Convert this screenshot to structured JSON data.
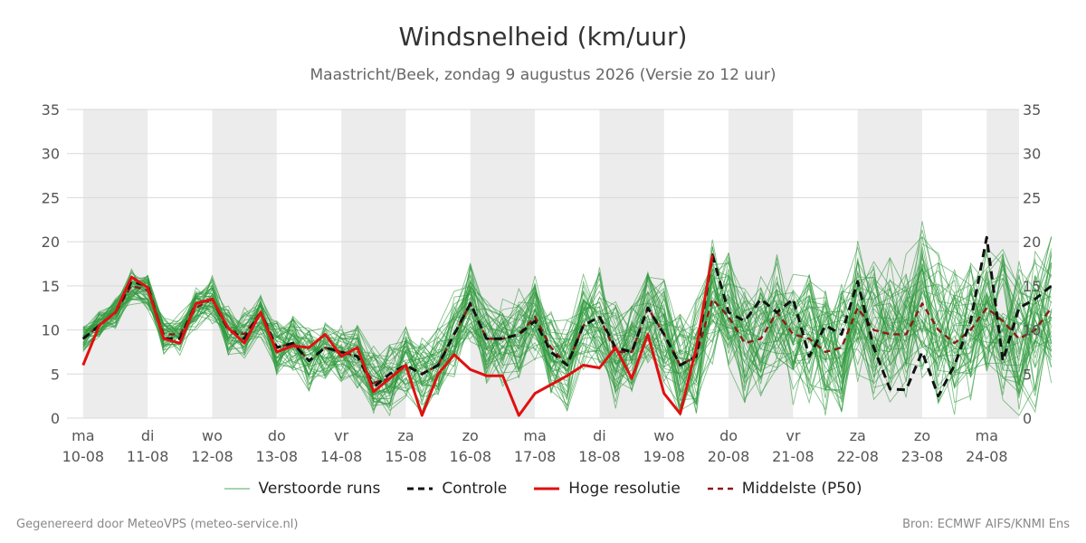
{
  "header": {
    "title": "Windsnelheid (km/uur)",
    "subtitle": "Maastricht/Beek, zondag  9 augustus 2026 (Versie zo 12 uur)"
  },
  "legend": {
    "ensemble": "Verstoorde runs",
    "control": "Controle",
    "hires": "Hoge resolutie",
    "median": "Middelste (P50)"
  },
  "footer": {
    "left": "Gegenereerd door MeteoVPS (meteo-service.nl)",
    "right": "Bron: ECMWF AIFS/KNMI Ens"
  },
  "colors": {
    "ensemble": "#2f9a3c",
    "control": "#111111",
    "hires": "#e01010",
    "median": "#8b1a1a",
    "shade": "#ececec",
    "grid": "#d9d9d9"
  },
  "chart_data": {
    "type": "line",
    "ylim": [
      0,
      35
    ],
    "yticks": [
      0,
      5,
      10,
      15,
      20,
      25,
      30,
      35
    ],
    "xlim_days": [
      -0.25,
      14.5
    ],
    "x_ticks": [
      {
        "day": "ma",
        "date": "10-08"
      },
      {
        "day": "di",
        "date": "11-08"
      },
      {
        "day": "wo",
        "date": "12-08"
      },
      {
        "day": "do",
        "date": "13-08"
      },
      {
        "day": "vr",
        "date": "14-08"
      },
      {
        "day": "za",
        "date": "15-08"
      },
      {
        "day": "zo",
        "date": "16-08"
      },
      {
        "day": "ma",
        "date": "17-08"
      },
      {
        "day": "di",
        "date": "18-08"
      },
      {
        "day": "wo",
        "date": "19-08"
      },
      {
        "day": "do",
        "date": "20-08"
      },
      {
        "day": "vr",
        "date": "21-08"
      },
      {
        "day": "za",
        "date": "22-08"
      },
      {
        "day": "zo",
        "date": "23-08"
      },
      {
        "day": "ma",
        "date": "24-08"
      }
    ],
    "shaded_days": [
      "10-08",
      "12-08",
      "14-08",
      "16-08",
      "18-08",
      "20-08",
      "22-08",
      "24-08"
    ],
    "grid": true,
    "legend_position": "bottom",
    "control": {
      "x_step_days": 0.25,
      "values": [
        9,
        10.5,
        12,
        15.5,
        15,
        9,
        9,
        13,
        13.5,
        10,
        9,
        12,
        8,
        8.5,
        6.5,
        8,
        7.5,
        7,
        3.5,
        5,
        6,
        5,
        6,
        9.5,
        13,
        9,
        9,
        9.5,
        11,
        7.5,
        6,
        10.5,
        11.5,
        8,
        7.5,
        12.5,
        9.5,
        6,
        7,
        18.5,
        12,
        11,
        13.5,
        12,
        13.5,
        7,
        10.5,
        9.5,
        15.5,
        8,
        3.3,
        3.2,
        7.5,
        2.5,
        6,
        11,
        20.5,
        6.5,
        12.5,
        13.5,
        15
      ]
    },
    "hires": {
      "x_step_days": 0.25,
      "values": [
        6,
        10.5,
        12,
        16,
        14.8,
        9,
        8.5,
        13,
        13.5,
        10.2,
        8.5,
        12,
        7.5,
        8.2,
        8,
        9.5,
        7,
        8,
        3,
        4.5,
        6,
        0.3,
        5,
        7.2,
        5.5,
        4.8,
        4.8,
        0.3,
        2.8,
        3.8,
        4.8,
        6,
        5.7,
        8,
        4.5,
        9.5,
        2.8,
        0.5,
        8,
        18.5
      ]
    },
    "median": {
      "x_step_days": 0.25,
      "values": [
        9,
        10.5,
        12,
        15,
        14.5,
        9.5,
        9.5,
        12.5,
        13.5,
        10,
        9.5,
        12,
        8,
        8.5,
        6.5,
        8,
        7.5,
        7,
        4,
        4.5,
        6,
        5,
        6,
        9.5,
        13,
        9,
        9,
        9.5,
        11.5,
        8,
        6,
        10.5,
        11.5,
        7.5,
        7.5,
        12.5,
        9.5,
        6,
        7,
        13.5,
        11.5,
        8.5,
        9,
        12,
        9.5,
        9,
        7.5,
        8,
        12.5,
        10,
        9.5,
        9.5,
        13,
        10,
        8.5,
        10,
        12.5,
        11,
        9,
        10,
        12.5
      ]
    }
  }
}
